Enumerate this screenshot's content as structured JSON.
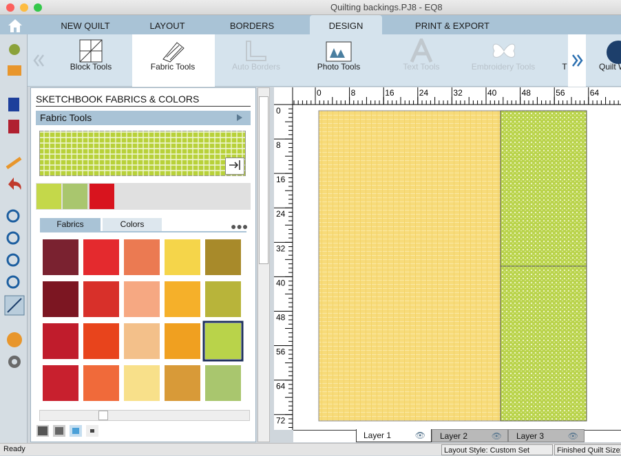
{
  "window": {
    "title": "Quilting backings.PJ8 - EQ8"
  },
  "tabs": [
    "NEW QUILT",
    "LAYOUT",
    "BORDERS",
    "DESIGN",
    "PRINT & EXPORT"
  ],
  "toolbar": [
    "Block Tools",
    "Fabric Tools",
    "Auto Borders",
    "Photo Tools",
    "Text Tools",
    "Embroidery Tools",
    "T",
    "Quilt W"
  ],
  "panel": {
    "title": "SKETCHBOOK FABRICS & COLORS",
    "header": "Fabric Tools",
    "tabs": [
      "Fabrics",
      "Colors"
    ]
  },
  "ruler": {
    "top": [
      0,
      8,
      16,
      24,
      32,
      40,
      48,
      56,
      64
    ],
    "left": [
      0,
      8,
      16,
      24,
      32,
      40,
      48,
      56,
      64,
      72
    ]
  },
  "layers": [
    "Layer 1",
    "Layer 2",
    "Layer 3"
  ],
  "status": {
    "left": "Ready",
    "layout": "Layout Style: Custom Set",
    "size": "Finished Quilt Size:"
  }
}
